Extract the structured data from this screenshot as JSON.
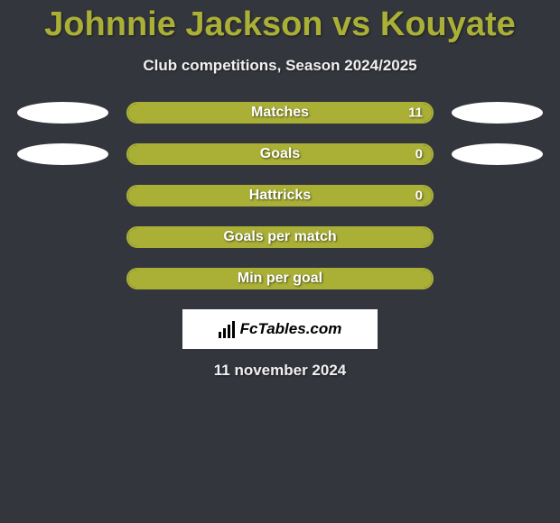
{
  "colors": {
    "background": "#34363d",
    "title": "#aab036",
    "text_light": "#f0f0f0",
    "bar_border": "#aab036",
    "bar_fill": "#aab036",
    "bar_text": "#ffffff",
    "ellipse": "#ffffff",
    "logo_bg": "#ffffff",
    "logo_text": "#000000"
  },
  "title": "Johnnie Jackson vs Kouyate",
  "subtitle": "Club competitions, Season 2024/2025",
  "rows": [
    {
      "label": "Matches",
      "value": "11",
      "fill_pct": 100,
      "left_ellipse": true,
      "right_ellipse": true,
      "show_value": true
    },
    {
      "label": "Goals",
      "value": "0",
      "fill_pct": 100,
      "left_ellipse": true,
      "right_ellipse": true,
      "show_value": true
    },
    {
      "label": "Hattricks",
      "value": "0",
      "fill_pct": 100,
      "left_ellipse": false,
      "right_ellipse": false,
      "show_value": true
    },
    {
      "label": "Goals per match",
      "value": "",
      "fill_pct": 100,
      "left_ellipse": false,
      "right_ellipse": false,
      "show_value": false
    },
    {
      "label": "Min per goal",
      "value": "",
      "fill_pct": 100,
      "left_ellipse": false,
      "right_ellipse": false,
      "show_value": false
    }
  ],
  "logo_text": "FcTables.com",
  "date": "11 november 2024",
  "typography": {
    "title_fontsize": 38,
    "subtitle_fontsize": 17,
    "label_fontsize": 16,
    "value_fontsize": 15,
    "date_fontsize": 17
  }
}
